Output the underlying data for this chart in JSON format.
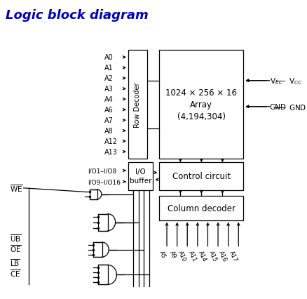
{
  "title": "Logic block diagram",
  "title_color": "#0000CC",
  "title_fontsize": 13,
  "background_color": "#ffffff",
  "address_inputs": [
    "A0",
    "A1",
    "A2",
    "A3",
    "A4",
    "A6",
    "A7",
    "A8",
    "A12",
    "A13"
  ],
  "io_inputs": [
    "I/O1–I/O8",
    "I/O9–I/O16"
  ],
  "column_inputs": [
    "A5",
    "A9",
    "A10",
    "A11",
    "A14",
    "A15",
    "A16",
    "A17"
  ],
  "control_inputs": [
    "WE",
    "UB",
    "OE",
    "LB",
    "CE"
  ],
  "array_label_line1": "1024 × 256 × 16",
  "array_label_line2": "Array",
  "array_label_line3": "(4,194,304)",
  "row_decoder_label": "Row Decoder",
  "io_buffer_label": "I/O\nbuffer",
  "control_circuit_label": "Control circuit",
  "column_decoder_label": "Column decoder",
  "line_color": "#000000",
  "text_color": "#000000"
}
